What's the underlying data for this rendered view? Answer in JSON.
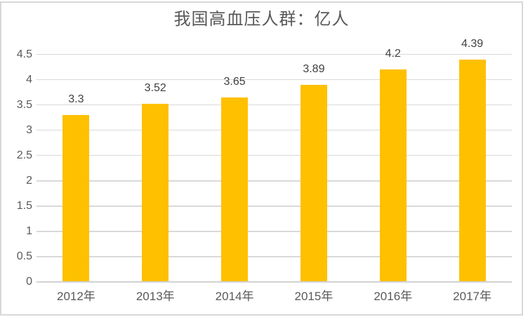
{
  "window": {
    "background": "#FFFFFF",
    "border_color": "#D8D8D8"
  },
  "chart_data": {
    "type": "bar",
    "title": "我国高血压人群：亿人",
    "categories": [
      "2012年",
      "2013年",
      "2014年",
      "2015年",
      "2016年",
      "2017年"
    ],
    "values": [
      3.3,
      3.52,
      3.65,
      3.89,
      4.2,
      4.39
    ],
    "value_labels": [
      "3.3",
      "3.52",
      "3.65",
      "3.89",
      "4.2",
      "4.39"
    ],
    "xlabel": "",
    "ylabel": "",
    "ylim": [
      0,
      4.5
    ],
    "ytick_step": 0.5,
    "yticks": [
      0,
      0.5,
      1,
      1.5,
      2,
      2.5,
      3,
      3.5,
      4,
      4.5
    ],
    "ytick_labels": [
      "0",
      "0.5",
      "1",
      "1.5",
      "2",
      "2.5",
      "3",
      "3.5",
      "4",
      "4.5"
    ],
    "grid": true,
    "legend": "none",
    "bar_color": "#FFC000",
    "grid_color": "#D9D9D9",
    "axis_line_color": "#D3D3D3",
    "tick_text_color": "#595959",
    "value_label_color": "#404040",
    "title_color": "#595959"
  }
}
